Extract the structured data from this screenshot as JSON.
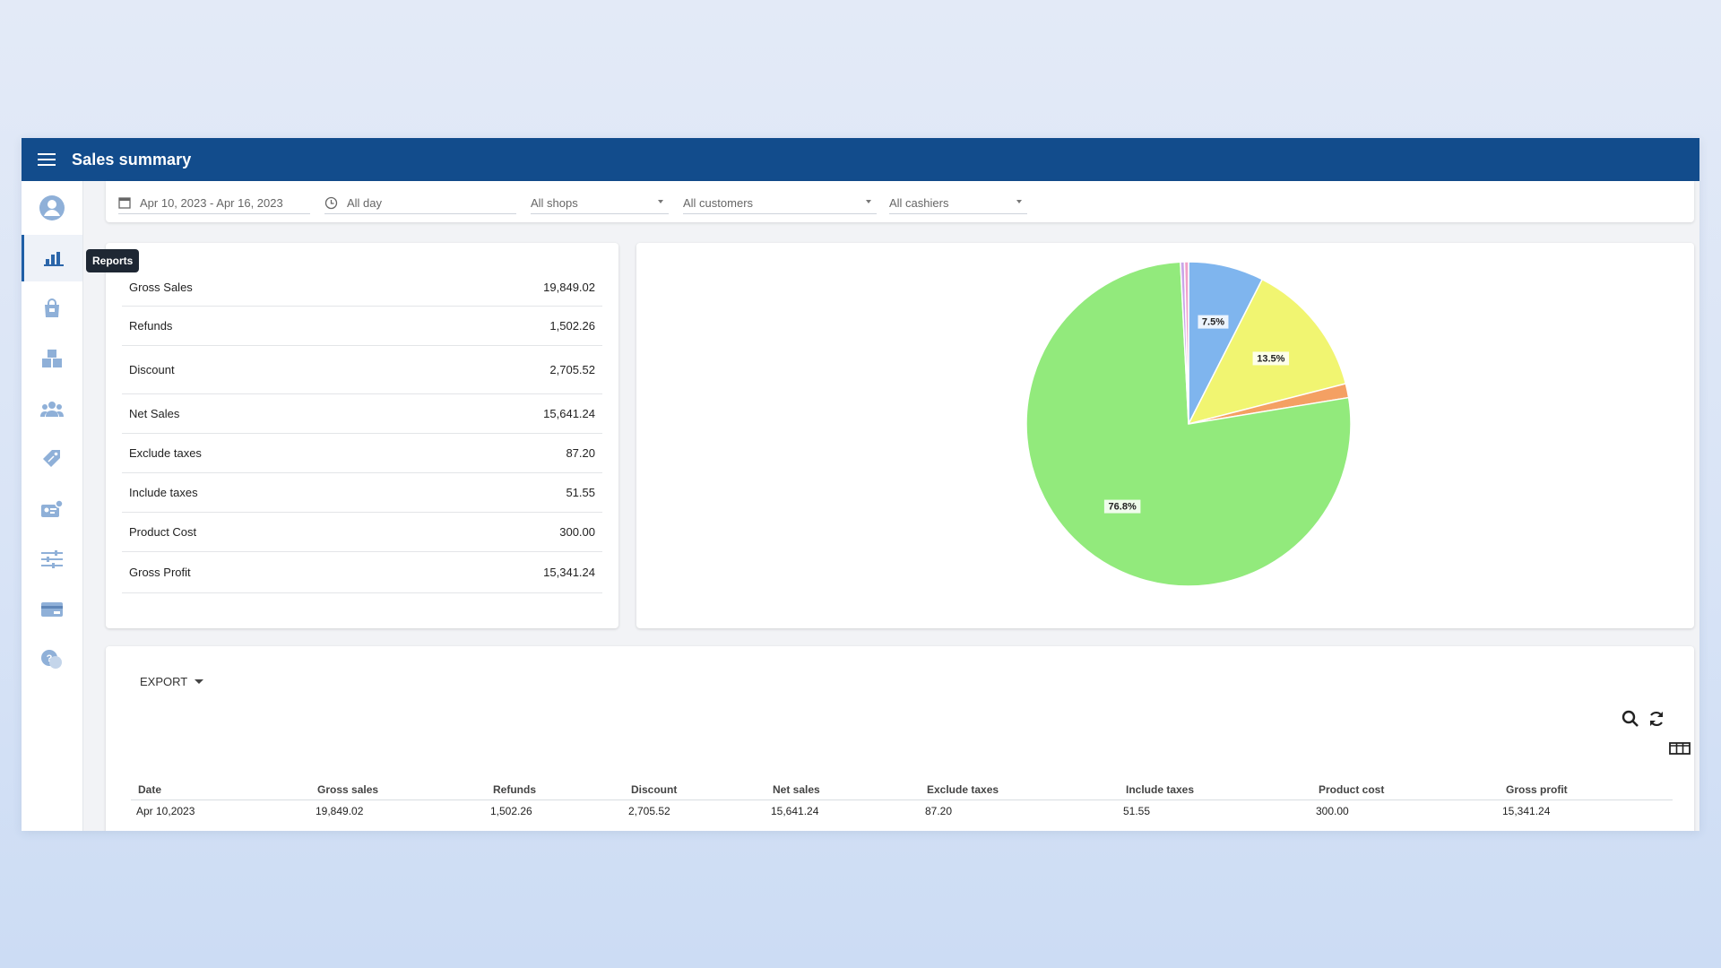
{
  "header": {
    "title": "Sales summary"
  },
  "sidebar": {
    "icons": [
      "account-icon",
      "reports-icon",
      "items-icon",
      "inventory-icon",
      "customers-icon",
      "discounts-icon",
      "employees-icon",
      "settings-icon",
      "billing-icon",
      "help-icon"
    ],
    "tooltip": "Reports"
  },
  "filters": {
    "date_range": "Apr 10, 2023 - Apr 16, 2023",
    "time": "All day",
    "shops": "All shops",
    "customers": "All customers",
    "cashiers": "All cashiers"
  },
  "summary": {
    "rows": [
      {
        "label": "Gross Sales",
        "value": "19,849.02"
      },
      {
        "label": "Refunds",
        "value": "1,502.26"
      },
      {
        "label": "Discount",
        "value": "2,705.52"
      },
      {
        "label": "Net Sales",
        "value": "15,641.24"
      },
      {
        "label": "Exclude taxes",
        "value": "87.20"
      },
      {
        "label": "Include taxes",
        "value": "51.55"
      },
      {
        "label": "Product Cost",
        "value": "300.00"
      },
      {
        "label": "Gross Profit",
        "value": "15,341.24"
      }
    ]
  },
  "chart_data": {
    "type": "pie",
    "slices": [
      {
        "value": 7.5,
        "label": "7.5%",
        "color": "#7fb5ee"
      },
      {
        "value": 13.5,
        "label": "13.5%",
        "color": "#f1f571"
      },
      {
        "value": 1.4,
        "label": "",
        "color": "#f4a063"
      },
      {
        "value": 76.8,
        "label": "76.8%",
        "color": "#92ea7c"
      },
      {
        "value": 0.4,
        "label": "",
        "color": "#c9a6e8"
      },
      {
        "value": 0.4,
        "label": "",
        "color": "#f0a0c8"
      }
    ]
  },
  "table": {
    "export_label": "EXPORT",
    "columns": [
      "Date",
      "Gross sales",
      "Refunds",
      "Discount",
      "Net sales",
      "Exclude taxes",
      "Include taxes",
      "Product cost",
      "Gross profit"
    ],
    "rows": [
      [
        "Apr 10,2023",
        "19,849.02",
        "1,502.26",
        "2,705.52",
        "15,641.24",
        "87.20",
        "51.55",
        "300.00",
        "15,341.24"
      ]
    ]
  },
  "colors": {
    "accent": "#124c8c",
    "icon": "#8fb0d8"
  }
}
